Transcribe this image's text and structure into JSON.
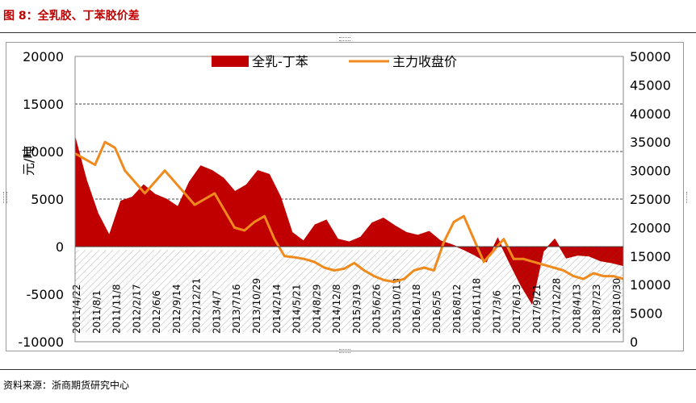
{
  "header": {
    "title": "图 8：全乳胶、丁苯胶价差"
  },
  "footer": {
    "source": "资料来源：浙商期货研究中心"
  },
  "chart_data": {
    "type": "bar-line",
    "ylabel": "元/吨",
    "y_left": {
      "min": -10000,
      "max": 20000,
      "ticks": [
        -10000,
        -5000,
        0,
        5000,
        10000,
        15000,
        20000
      ]
    },
    "y_right": {
      "min": 0,
      "max": 50000,
      "ticks": [
        0,
        5000,
        10000,
        15000,
        20000,
        25000,
        30000,
        35000,
        40000,
        45000,
        50000
      ]
    },
    "grid": "dashed horizontal at 5000, 10000, 15000",
    "legend": {
      "position": "top-center",
      "entries": [
        "全乳-丁苯",
        "主力收盘价"
      ]
    },
    "x_tick_labels": [
      "2011/4/22",
      "2011/8/1",
      "2011/11/8",
      "2012/2/17",
      "2012/6/6",
      "2012/9/14",
      "2012/12/21",
      "2013/4/7",
      "2013/7/16",
      "2013/10/29",
      "2014/2/14",
      "2014/5/21",
      "2014/8/29",
      "2014/12/8",
      "2015/3/19",
      "2015/6/26",
      "2015/10/13",
      "2016/1/18",
      "2016/5/5",
      "2016/8/12",
      "2016/11/18",
      "2017/3/6",
      "2017/6/13",
      "2017/9/21",
      "2017/12/28",
      "2018/4/13",
      "2018/7/23",
      "2018/10/30"
    ],
    "series": [
      {
        "name": "全乳-丁苯",
        "axis": "left",
        "style": "area",
        "color": "#c00000",
        "values": [
          11500,
          7000,
          3500,
          1200,
          4800,
          5200,
          6500,
          5500,
          5000,
          4200,
          6800,
          8500,
          8000,
          7200,
          5800,
          6500,
          8000,
          7600,
          5200,
          1500,
          600,
          2300,
          2800,
          800,
          500,
          1000,
          2500,
          3000,
          2200,
          1500,
          1200,
          1600,
          600,
          200,
          -300,
          -900,
          -1600,
          900,
          -1600,
          -4000,
          -6000,
          -500,
          800,
          -1200,
          -900,
          -1000,
          -1500,
          -1700,
          -2000
        ]
      },
      {
        "name": "主力收盘价",
        "axis": "right",
        "style": "line",
        "color": "#f08a1c",
        "values": [
          33000,
          32000,
          31000,
          35000,
          34000,
          30000,
          28000,
          26000,
          28000,
          30000,
          28000,
          26000,
          24000,
          25000,
          26000,
          23000,
          20000,
          19500,
          21000,
          22000,
          18000,
          15000,
          14800,
          14500,
          14000,
          13000,
          12500,
          12800,
          13800,
          12500,
          11500,
          10800,
          10500,
          11000,
          12500,
          13000,
          12500,
          17500,
          21000,
          22000,
          18000,
          14000,
          16000,
          18000,
          14500,
          14500,
          14000,
          13500,
          13000,
          12500,
          11500,
          11000,
          12000,
          11500,
          11500,
          11000
        ]
      }
    ]
  }
}
